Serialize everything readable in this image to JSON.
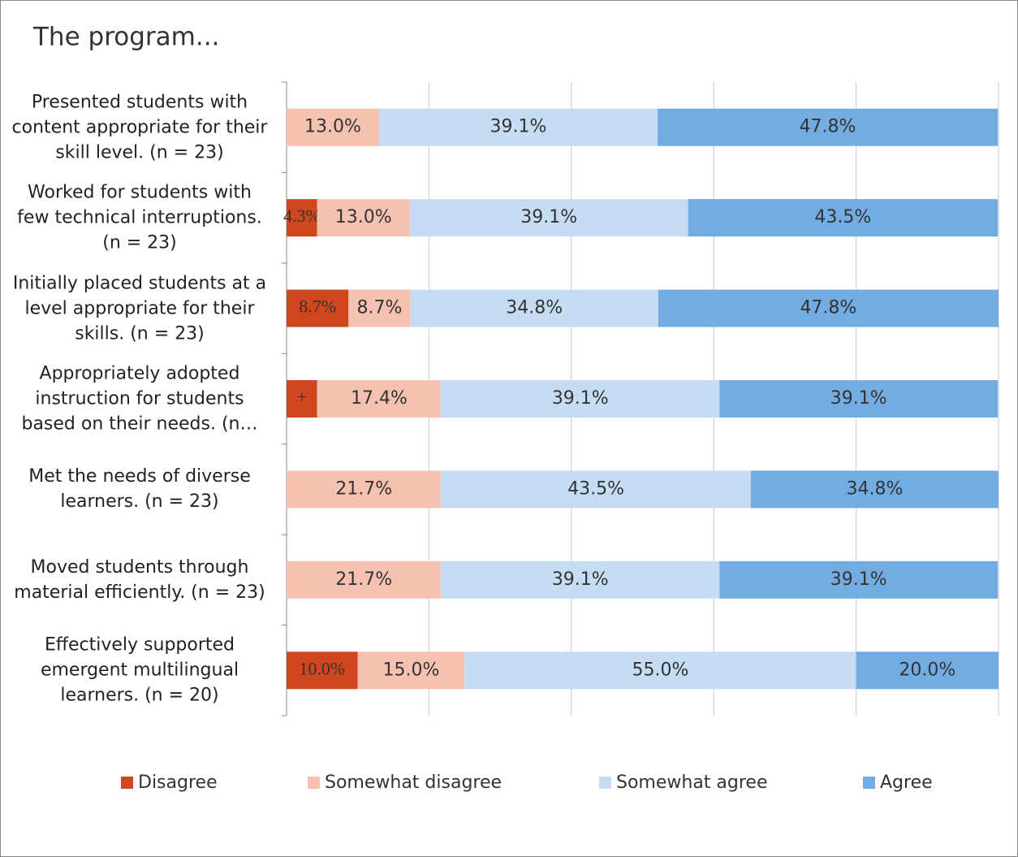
{
  "chart_data": {
    "type": "stacked-bar-horizontal",
    "title": "The program...",
    "categories": [
      "Presented students with content appropriate for their skill level. (n = 23)",
      "Worked for students with few technical interruptions. (n = 23)",
      "Initially placed students at a level appropriate for their skills.  (n = 23)",
      "Appropriately adopted instruction for students based on their needs. (n…",
      "Met the needs of diverse learners. (n = 23)",
      "Moved students through material efficiently. (n = 23)",
      "Effectively supported emergent multilingual learners. (n = 20)"
    ],
    "series": [
      {
        "name": "Disagree",
        "color": "#d0461f",
        "values": [
          0,
          4.3,
          8.7,
          4.3,
          0,
          0,
          10.0
        ],
        "value_labels": [
          null,
          "4.3%",
          "8.7%",
          "+",
          null,
          null,
          "10.0%"
        ]
      },
      {
        "name": "Somewhat disagree",
        "color": "#f5c1b1",
        "values": [
          13.0,
          13.0,
          8.7,
          17.4,
          21.7,
          21.7,
          15.0
        ],
        "value_labels": [
          "13.0%",
          "13.0%",
          "8.7%",
          "17.4%",
          "21.7%",
          "21.7%",
          "15.0%"
        ]
      },
      {
        "name": "Somewhat agree",
        "color": "#c6dcf3",
        "values": [
          39.1,
          39.1,
          34.8,
          39.1,
          43.5,
          39.1,
          55.0
        ],
        "value_labels": [
          "39.1%",
          "39.1%",
          "34.8%",
          "39.1%",
          "43.5%",
          "39.1%",
          "55.0%"
        ]
      },
      {
        "name": "Agree",
        "color": "#72ace3",
        "values": [
          47.8,
          43.5,
          47.8,
          39.1,
          34.8,
          39.1,
          20.0
        ],
        "value_labels": [
          "47.8%",
          "43.5%",
          "47.8%",
          "39.1%",
          "34.8%",
          "39.1%",
          "20.0%"
        ]
      }
    ],
    "xlim": [
      0,
      100
    ],
    "xticks": [
      0,
      20,
      40,
      60,
      80,
      100
    ],
    "grid": true,
    "legend": "bottom"
  }
}
